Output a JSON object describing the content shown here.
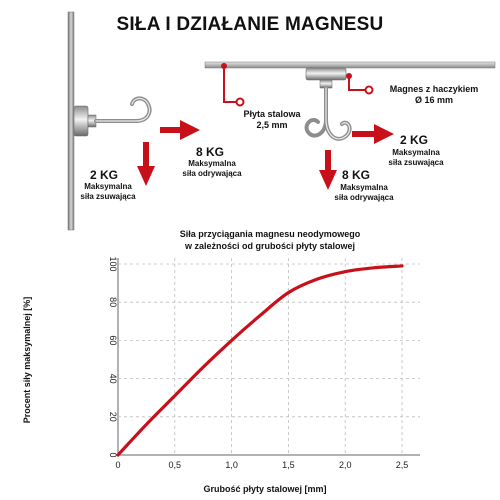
{
  "header": {
    "title": "SIŁA I DZIAŁANIE MAGNESU"
  },
  "diagram": {
    "wall_shear": {
      "value": "2 KG",
      "line1": "Maksymalna",
      "line2": "siła zsuwająca"
    },
    "wall_pull": {
      "value": "8 KG",
      "line1": "Maksymalna",
      "line2": "siła odrywająca"
    },
    "plate": {
      "line1": "Płyta stalowa",
      "line2": "2,5 mm"
    },
    "magnet": {
      "line1": "Magnes z haczykiem",
      "line2": "Ø 16 mm"
    },
    "ceiling_shear": {
      "value": "2 KG",
      "line1": "Maksymalna",
      "line2": "siła zsuwająca"
    },
    "ceiling_pull": {
      "value": "8 KG",
      "line1": "Maksymalna",
      "line2": "siła odrywająca"
    },
    "colors": {
      "accent": "#d0121b",
      "metal": "#9a9a9a"
    }
  },
  "chart_data": {
    "type": "line",
    "title_line1": "Siła przyciągania magnesu neodymowego",
    "title_line2": "w zależności od grubości płyty stalowej",
    "xlabel": "Grubość płyty stalowej [mm]",
    "ylabel": "Procent siły maksymalnej [%]",
    "xlim": [
      0,
      2.5
    ],
    "ylim": [
      0,
      100
    ],
    "x_ticks": [
      "0",
      "0,5",
      "1,0",
      "1,5",
      "2,0",
      "2,5"
    ],
    "y_ticks": [
      "0",
      "20",
      "40",
      "60",
      "80",
      "100"
    ],
    "grid": true,
    "series": [
      {
        "x": [
          0,
          0.25,
          0.5,
          0.75,
          1.0,
          1.25,
          1.5,
          1.75,
          2.0,
          2.25,
          2.5
        ],
        "y": [
          0,
          16,
          31,
          46,
          60,
          73,
          85,
          92,
          96,
          98,
          99
        ],
        "color": "#c8101a"
      }
    ]
  }
}
